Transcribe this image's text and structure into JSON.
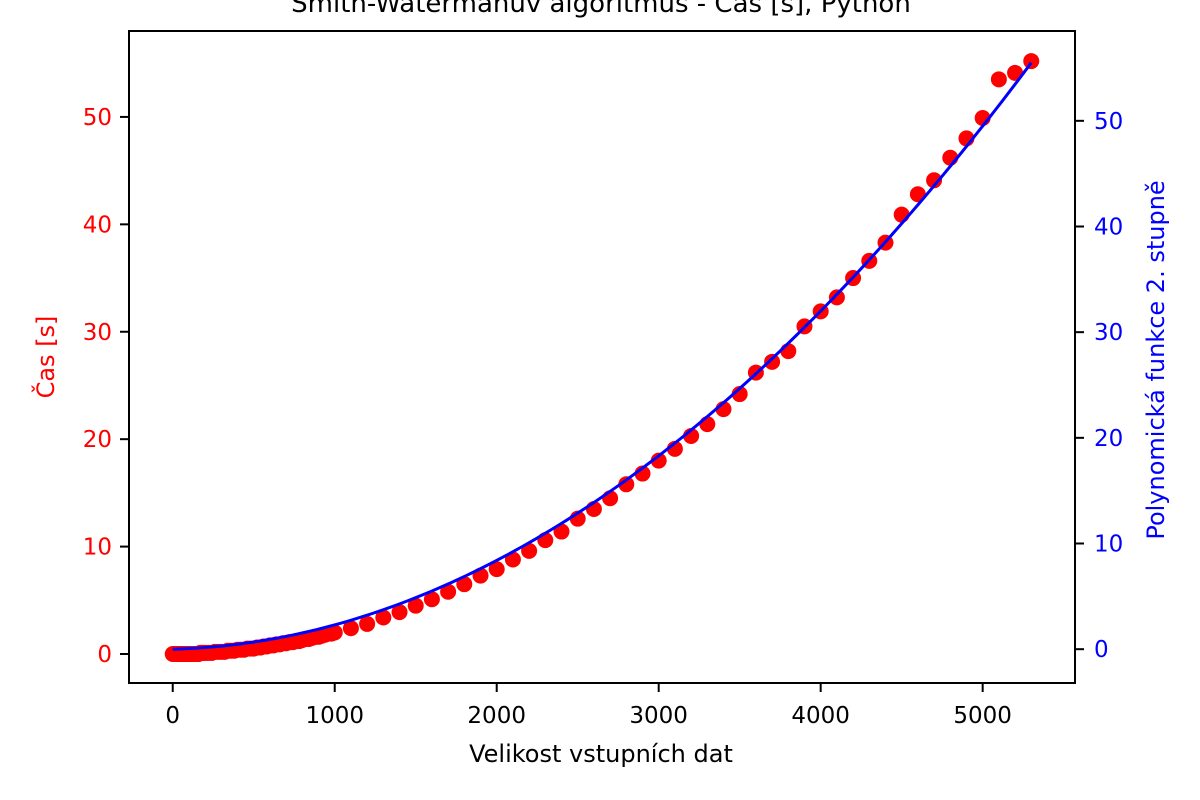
{
  "chart_data": {
    "type": "scatter",
    "title": "Smith-Watermanův algoritmus - Čas [s], Python",
    "xlabel": "Velikost vstupních dat",
    "ylabel_left": "Čas [s]",
    "ylabel_right": "Polynomická funkce 2. stupně",
    "xlim": [
      -270,
      5570
    ],
    "ylim_left": [
      -2.7,
      58.0
    ],
    "ylim_right": [
      -3.2,
      58.5
    ],
    "x_ticks": [
      0,
      1000,
      2000,
      3000,
      4000,
      5000
    ],
    "y_ticks_left": [
      0,
      10,
      20,
      30,
      40,
      50
    ],
    "y_ticks_right": [
      0,
      10,
      20,
      30,
      40,
      50
    ],
    "grid": false,
    "legend": "none",
    "colors": {
      "scatter": "#ff0000",
      "fit": "#0000ff",
      "left_axis_text": "#ff0000",
      "right_axis_text": "#0000ff",
      "axes": "#000000"
    },
    "series": [
      {
        "axis": "left",
        "style": "scatter",
        "x": [
          0,
          10,
          20,
          30,
          40,
          50,
          60,
          70,
          80,
          90,
          100,
          110,
          120,
          130,
          140,
          150,
          160,
          170,
          180,
          190,
          200,
          220,
          240,
          260,
          280,
          300,
          320,
          340,
          360,
          380,
          400,
          420,
          440,
          460,
          480,
          500,
          520,
          540,
          560,
          580,
          600,
          620,
          640,
          660,
          680,
          700,
          720,
          740,
          760,
          780,
          800,
          820,
          840,
          860,
          880,
          900,
          920,
          940,
          960,
          980,
          1000,
          1100,
          1200,
          1300,
          1400,
          1500,
          1600,
          1700,
          1800,
          1900,
          2000,
          2100,
          2200,
          2300,
          2400,
          2500,
          2600,
          2700,
          2800,
          2900,
          3000,
          3100,
          3200,
          3300,
          3400,
          3500,
          3600,
          3700,
          3800,
          3900,
          4000,
          4100,
          4200,
          4300,
          4400,
          4500,
          4600,
          4700,
          4800,
          4900,
          5000,
          5100,
          5200,
          5300
        ],
        "y": [
          0.0,
          0.0,
          0.0,
          0.0,
          0.0,
          0.0,
          0.0,
          0.0,
          0.0,
          0.0,
          0.0,
          0.0,
          0.0,
          0.0,
          0.0,
          0.0,
          0.0,
          0.1,
          0.1,
          0.1,
          0.1,
          0.1,
          0.1,
          0.2,
          0.2,
          0.2,
          0.2,
          0.3,
          0.3,
          0.3,
          0.4,
          0.4,
          0.4,
          0.5,
          0.5,
          0.5,
          0.6,
          0.6,
          0.7,
          0.7,
          0.8,
          0.8,
          0.9,
          0.9,
          1.0,
          1.0,
          1.1,
          1.1,
          1.2,
          1.2,
          1.3,
          1.4,
          1.4,
          1.5,
          1.6,
          1.6,
          1.7,
          1.8,
          1.9,
          1.9,
          2.0,
          2.4,
          2.8,
          3.4,
          3.9,
          4.5,
          5.1,
          5.8,
          6.5,
          7.3,
          7.9,
          8.8,
          9.6,
          10.6,
          11.4,
          12.6,
          13.5,
          14.5,
          15.8,
          16.8,
          18.0,
          19.1,
          20.3,
          21.4,
          22.8,
          24.2,
          26.2,
          27.2,
          28.2,
          30.5,
          31.9,
          33.2,
          35.0,
          36.6,
          38.3,
          40.9,
          42.8,
          44.1,
          46.2,
          48.0,
          49.9,
          53.5,
          54.1,
          55.2
        ]
      },
      {
        "axis": "right",
        "style": "line",
        "fit": {
          "a": 1.9e-06,
          "b": 0.0004,
          "c": 0.0,
          "x_from": 0,
          "x_to": 5300
        }
      }
    ]
  }
}
